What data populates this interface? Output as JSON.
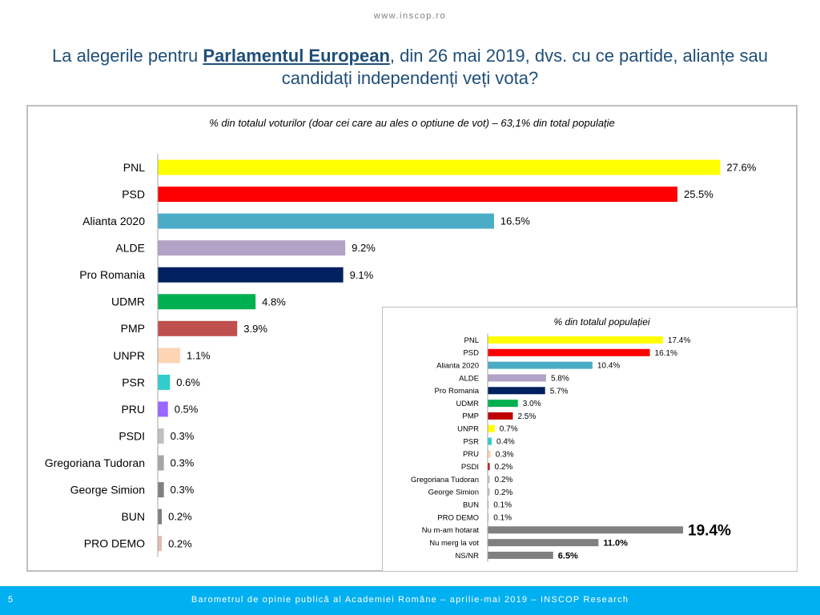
{
  "header": {
    "url": "www.inscop.ro",
    "title_before": "La alegerile pentru ",
    "title_bold": "Parlamentul European",
    "title_after": ", din 26 mai 2019, dvs. cu ce partide, alianțe sau candidați independenți veți vota?"
  },
  "footer": {
    "page_number": "5",
    "text": "Barometrul de opinie publică al Academiei Române – aprilie-mai 2019 – INSCOP Research"
  },
  "chart_data": [
    {
      "type": "bar",
      "orientation": "horizontal",
      "title": "% din totalul voturilor (doar cei care au ales o optiune de vot) – 63,1% din total populație",
      "categories": [
        "PNL",
        "PSD",
        "Alianta 2020",
        "ALDE",
        "Pro Romania",
        "UDMR",
        "PMP",
        "UNPR",
        "PSR",
        "PRU",
        "PSDI",
        "Gregoriana Tudoran",
        "George Simion",
        "BUN",
        "PRO DEMO"
      ],
      "values": [
        27.6,
        25.5,
        16.5,
        9.2,
        9.1,
        4.8,
        3.9,
        1.1,
        0.6,
        0.5,
        0.3,
        0.3,
        0.3,
        0.2,
        0.2
      ],
      "labels": [
        "27.6%",
        "25.5%",
        "16.5%",
        "9.2%",
        "9.1%",
        "4.8%",
        "3.9%",
        "1.1%",
        "0.6%",
        "0.5%",
        "0.3%",
        "0.3%",
        "0.3%",
        "0.2%",
        "0.2%"
      ],
      "colors": [
        "#ffff00",
        "#ff0000",
        "#4bacc6",
        "#b3a2c7",
        "#002060",
        "#00b050",
        "#c0504d",
        "#fcd5b5",
        "#33cccc",
        "#9966ff",
        "#bfbfbf",
        "#a6a6a6",
        "#808080",
        "#808080",
        "#e6b9b8"
      ]
    },
    {
      "type": "bar",
      "orientation": "horizontal",
      "title": "% din totalul populației",
      "categories": [
        "PNL",
        "PSD",
        "Alianta 2020",
        "ALDE",
        "Pro Romania",
        "UDMR",
        "PMP",
        "UNPR",
        "PSR",
        "PRU",
        "PSDI",
        "Gregoriana Tudoran",
        "George Simion",
        "BUN",
        "PRO DEMO",
        "Nu m-am hotarat",
        "Nu merg la vot",
        "NS/NR"
      ],
      "values": [
        17.4,
        16.1,
        10.4,
        5.8,
        5.7,
        3.0,
        2.5,
        0.7,
        0.4,
        0.3,
        0.2,
        0.2,
        0.2,
        0.1,
        0.1,
        19.4,
        11.0,
        6.5
      ],
      "labels": [
        "17.4%",
        "16.1%",
        "10.4%",
        "5.8%",
        "5.7%",
        "3.0%",
        "2.5%",
        "0.7%",
        "0.4%",
        "0.3%",
        "0.2%",
        "0.2%",
        "0.2%",
        "0.1%",
        "0.1%",
        "19.4%",
        "11.0%",
        "6.5%"
      ],
      "colors": [
        "#ffff00",
        "#ff0000",
        "#4bacc6",
        "#b3a2c7",
        "#002060",
        "#00b050",
        "#c00000",
        "#ffff00",
        "#33cccc",
        "#fcd5b5",
        "#c00000",
        "#bfbfbf",
        "#bfbfbf",
        "#bfbfbf",
        "#bfbfbf",
        "#808080",
        "#808080",
        "#808080"
      ],
      "emphasis": [
        "normal",
        "normal",
        "normal",
        "normal",
        "normal",
        "normal",
        "normal",
        "normal",
        "normal",
        "normal",
        "normal",
        "normal",
        "normal",
        "normal",
        "normal",
        "large-bold",
        "bold",
        "bold"
      ]
    }
  ]
}
